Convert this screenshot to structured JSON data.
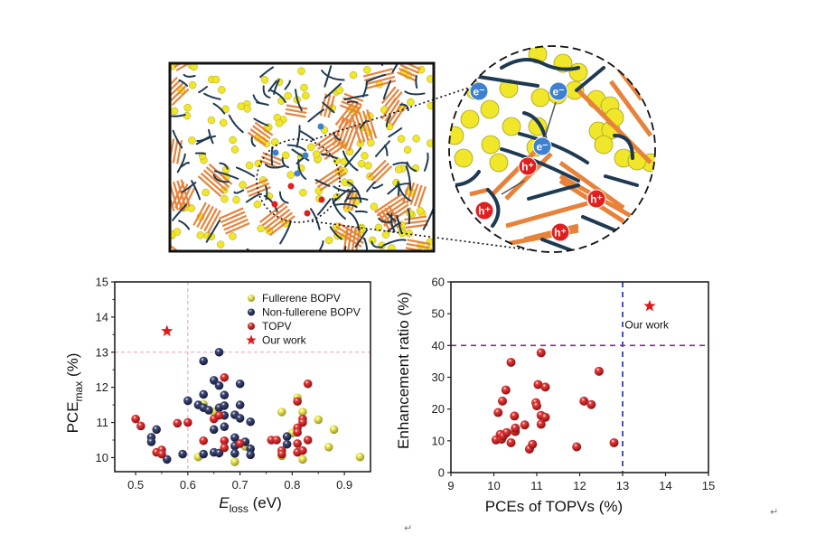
{
  "figure": {
    "schematic": {
      "description": "Bulk heterojunction morphology schematic with magnified circular inset",
      "legend_glyphs": {
        "electron": "e⁻",
        "hole": "h⁺"
      },
      "colors": {
        "fullerene": "#f0e62a",
        "polymer_chain": "#1e3a52",
        "crystal_stack": "#e8823a",
        "electron": "#3d7fd0",
        "hole": "#e02020"
      }
    },
    "paragraph_marks": [
      "↵",
      "↵"
    ]
  },
  "chart_data": [
    {
      "type": "scatter",
      "title": "",
      "xlabel": "E_loss (eV)",
      "xlabel_main": "E",
      "xlabel_sub": "loss",
      "xlabel_unit": " (eV)",
      "ylabel": "PCE_max (%)",
      "ylabel_main": "PCE",
      "ylabel_sub": "max",
      "ylabel_unit": " (%)",
      "xlim": [
        0.46,
        0.95
      ],
      "ylim": [
        9.6,
        15
      ],
      "xticks": [
        0.5,
        0.6,
        0.7,
        0.8,
        0.9
      ],
      "xtick_labels": [
        "0.5",
        "0.6",
        "0.7",
        "0.8",
        "0.9"
      ],
      "yticks": [
        10,
        11,
        12,
        13,
        14,
        15
      ],
      "ytick_labels": [
        "10",
        "11",
        "12",
        "13",
        "14",
        "15"
      ],
      "grid": false,
      "legend_position": "top-right",
      "reference_lines": [
        {
          "orientation": "vertical",
          "value": 0.6,
          "color": "#f0a0a8",
          "style": "dashed"
        },
        {
          "orientation": "horizontal",
          "value": 13,
          "color": "#f0a0a8",
          "style": "dashed"
        }
      ],
      "series": [
        {
          "name": "Fullerene BOPV",
          "marker": "sphere",
          "color": "#eeea40",
          "points": [
            [
              0.62,
              10.02
            ],
            [
              0.63,
              11.52
            ],
            [
              0.65,
              11.3
            ],
            [
              0.69,
              9.88
            ],
            [
              0.71,
              10.32
            ],
            [
              0.78,
              11.3
            ],
            [
              0.8,
              10.7
            ],
            [
              0.81,
              11.7
            ],
            [
              0.82,
              11.3
            ],
            [
              0.82,
              9.95
            ],
            [
              0.78,
              10.05
            ],
            [
              0.85,
              11.08
            ],
            [
              0.87,
              10.3
            ],
            [
              0.88,
              10.8
            ],
            [
              0.93,
              10.02
            ]
          ]
        },
        {
          "name": "Non-fullerene BOPV",
          "marker": "sphere",
          "color": "#1f2a5e",
          "points": [
            [
              0.53,
              10.58
            ],
            [
              0.53,
              10.45
            ],
            [
              0.54,
              10.8
            ],
            [
              0.56,
              9.95
            ],
            [
              0.59,
              10.1
            ],
            [
              0.6,
              11.62
            ],
            [
              0.62,
              11.5
            ],
            [
              0.63,
              12.75
            ],
            [
              0.63,
              11.8
            ],
            [
              0.63,
              11.42
            ],
            [
              0.63,
              10.1
            ],
            [
              0.64,
              11.35
            ],
            [
              0.65,
              12.2
            ],
            [
              0.65,
              10.8
            ],
            [
              0.65,
              10.15
            ],
            [
              0.66,
              13.0
            ],
            [
              0.66,
              12.05
            ],
            [
              0.66,
              11.42
            ],
            [
              0.66,
              10.13
            ],
            [
              0.67,
              11.78
            ],
            [
              0.67,
              11.48
            ],
            [
              0.67,
              11.2
            ],
            [
              0.67,
              10.88
            ],
            [
              0.69,
              11.22
            ],
            [
              0.69,
              10.57
            ],
            [
              0.69,
              10.33
            ],
            [
              0.69,
              10.12
            ],
            [
              0.7,
              12.1
            ],
            [
              0.7,
              11.5
            ],
            [
              0.7,
              11.12
            ],
            [
              0.71,
              10.45
            ],
            [
              0.72,
              11.02
            ],
            [
              0.72,
              10.25
            ],
            [
              0.72,
              10.08
            ],
            [
              0.79,
              10.6
            ],
            [
              0.79,
              10.38
            ]
          ]
        },
        {
          "name": "TOPV",
          "marker": "sphere",
          "color": "#e01818",
          "points": [
            [
              0.5,
              11.1
            ],
            [
              0.51,
              10.9
            ],
            [
              0.54,
              10.15
            ],
            [
              0.55,
              10.22
            ],
            [
              0.55,
              10.1
            ],
            [
              0.58,
              10.98
            ],
            [
              0.6,
              11.0
            ],
            [
              0.63,
              10.48
            ],
            [
              0.65,
              11.1
            ],
            [
              0.66,
              11.2
            ],
            [
              0.67,
              12.28
            ],
            [
              0.67,
              10.48
            ],
            [
              0.67,
              10.28
            ],
            [
              0.7,
              10.4
            ],
            [
              0.76,
              10.5
            ],
            [
              0.77,
              10.5
            ],
            [
              0.78,
              10.2
            ],
            [
              0.78,
              10.1
            ],
            [
              0.81,
              11.6
            ],
            [
              0.81,
              10.85
            ],
            [
              0.81,
              10.72
            ],
            [
              0.81,
              10.4
            ],
            [
              0.81,
              10.15
            ],
            [
              0.82,
              11.1
            ],
            [
              0.82,
              11.0
            ],
            [
              0.82,
              10.2
            ],
            [
              0.83,
              12.1
            ],
            [
              0.83,
              10.5
            ]
          ]
        },
        {
          "name": "Our work",
          "marker": "star",
          "color": "#e01818",
          "points": [
            [
              0.56,
              13.6
            ]
          ]
        }
      ]
    },
    {
      "type": "scatter",
      "title": "",
      "xlabel": "PCEs of TOPVs (%)",
      "ylabel": "Enhancement ratio (%)",
      "xlim": [
        9,
        15
      ],
      "ylim": [
        0,
        60
      ],
      "xticks": [
        9,
        10,
        11,
        12,
        13,
        14,
        15
      ],
      "xtick_labels": [
        "9",
        "10",
        "11",
        "12",
        "13",
        "14",
        "15"
      ],
      "yticks": [
        0,
        10,
        20,
        30,
        40,
        50,
        60
      ],
      "ytick_labels": [
        "0",
        "10",
        "20",
        "30",
        "40",
        "50",
        "60"
      ],
      "grid": false,
      "reference_lines": [
        {
          "orientation": "vertical",
          "value": 13,
          "color": "#1a2aa0",
          "style": "dashed"
        },
        {
          "orientation": "horizontal",
          "value": 40,
          "color": "#8a2a9a",
          "style": "dashed"
        }
      ],
      "annotations": [
        {
          "text": "Our work",
          "x": 13.05,
          "y": 46.5
        }
      ],
      "series": [
        {
          "name": "TOPV",
          "marker": "sphere",
          "color": "#e01818",
          "points": [
            [
              10.05,
              10.3
            ],
            [
              10.1,
              18.9
            ],
            [
              10.15,
              12.0
            ],
            [
              10.18,
              10.5
            ],
            [
              10.2,
              22.5
            ],
            [
              10.22,
              11.5
            ],
            [
              10.28,
              26.0
            ],
            [
              10.3,
              12.6
            ],
            [
              10.4,
              34.7
            ],
            [
              10.4,
              9.4
            ],
            [
              10.48,
              17.8
            ],
            [
              10.5,
              12.9
            ],
            [
              10.5,
              14.0
            ],
            [
              10.72,
              15.0
            ],
            [
              10.83,
              7.4
            ],
            [
              10.9,
              8.9
            ],
            [
              10.98,
              22.0
            ],
            [
              11.0,
              21.0
            ],
            [
              11.03,
              27.7
            ],
            [
              11.1,
              37.7
            ],
            [
              11.1,
              18.0
            ],
            [
              11.1,
              15.2
            ],
            [
              11.2,
              26.9
            ],
            [
              11.2,
              17.4
            ],
            [
              11.93,
              8.1
            ],
            [
              12.1,
              22.5
            ],
            [
              12.27,
              21.4
            ],
            [
              12.45,
              31.9
            ],
            [
              12.8,
              9.4
            ]
          ]
        },
        {
          "name": "Our work",
          "marker": "star",
          "color": "#e01818",
          "points": [
            [
              13.63,
              52.4
            ]
          ]
        }
      ]
    }
  ]
}
